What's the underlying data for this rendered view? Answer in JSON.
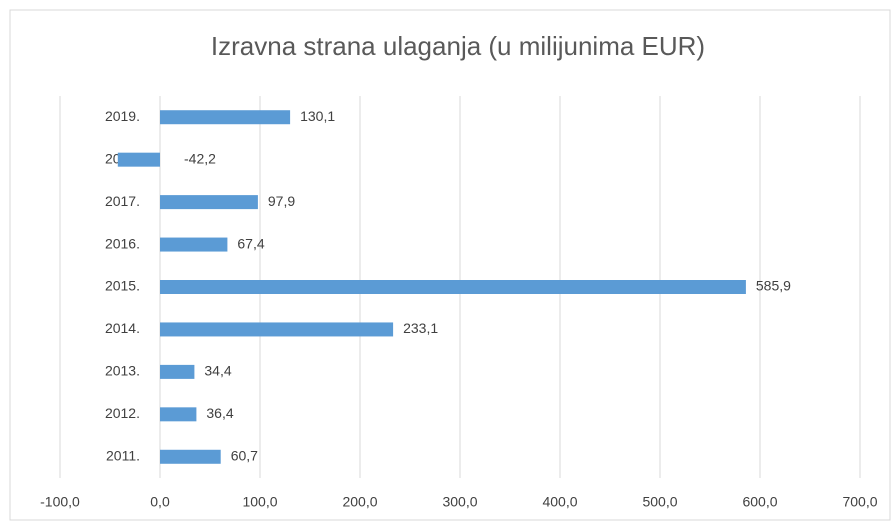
{
  "chart_data": {
    "type": "hbar",
    "title": "Izravna strana ulaganja (u milijunima EUR)",
    "categories": [
      "2019.",
      "2018.",
      "2017.",
      "2016.",
      "2015.",
      "2014.",
      "2013.",
      "2012.",
      "2011."
    ],
    "values": [
      130.1,
      -42.2,
      97.9,
      67.4,
      585.9,
      233.1,
      34.4,
      36.4,
      60.7
    ],
    "value_labels": [
      "130,1",
      "-42,2",
      "97,9",
      "67,4",
      "585,9",
      "233,1",
      "34,4",
      "36,4",
      "60,7"
    ],
    "color": "#5b9bd5",
    "xlim": [
      -100,
      700
    ],
    "xticks": [
      {
        "value": -100,
        "label": "-100,0"
      },
      {
        "value": 0,
        "label": "0,0"
      },
      {
        "value": 100,
        "label": "100,0"
      },
      {
        "value": 200,
        "label": "200,0"
      },
      {
        "value": 300,
        "label": "300,0"
      },
      {
        "value": 400,
        "label": "400,0"
      },
      {
        "value": 500,
        "label": "500,0"
      },
      {
        "value": 600,
        "label": "600,0"
      },
      {
        "value": 700,
        "label": "700,0"
      }
    ],
    "grid": true
  }
}
